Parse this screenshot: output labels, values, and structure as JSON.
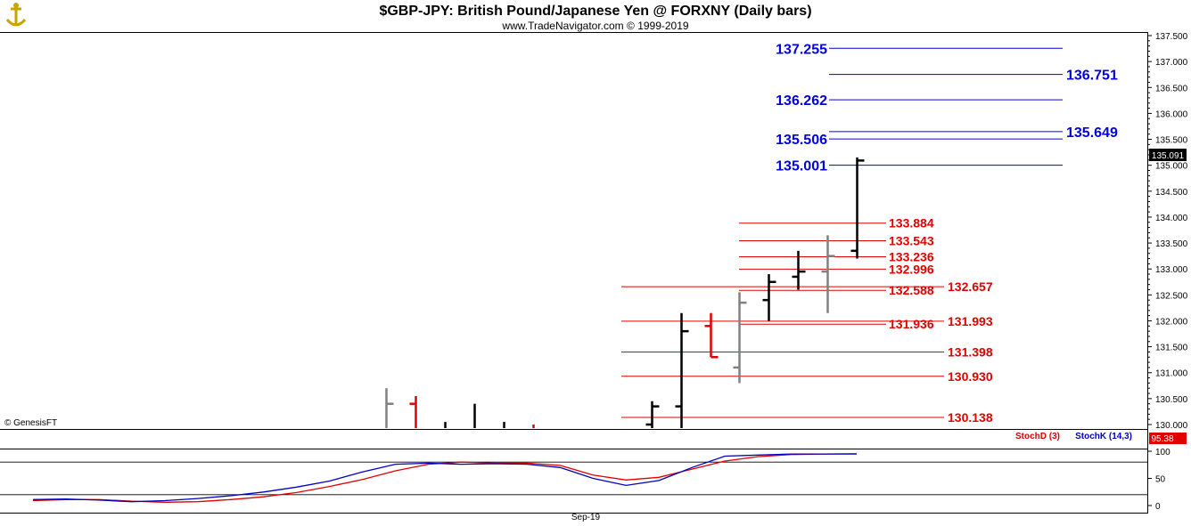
{
  "header": {
    "title": "$GBP-JPY:  British Pound/Japanese Yen @ FORXNY  (Daily bars)",
    "subtitle": "www.TradeNavigator.com © 1999-2019",
    "logo": "anchor-logo-icon"
  },
  "watermark": "© GenesisFT",
  "colors": {
    "bull": "#000000",
    "bear": "#e00000",
    "neutral": "#808080",
    "blue_levels": "#0000e0",
    "red_levels": "#e00000",
    "stochD": "#e00000",
    "stochK": "#0000c0",
    "last_price_bg": "#000000",
    "stoch_last_bg": "#e00000"
  },
  "chart_data": [
    {
      "type": "ohlc",
      "title": "$GBP-JPY:  British Pound/Japanese Yen @ FORXNY  (Daily bars)",
      "ylim": [
        129.9,
        137.6
      ],
      "y_ticks": [
        "137.500",
        "137.000",
        "136.500",
        "136.000",
        "135.500",
        "135.000",
        "134.500",
        "134.000",
        "133.500",
        "133.000",
        "132.500",
        "132.000",
        "131.500",
        "131.000",
        "130.500",
        "130.000"
      ],
      "last_price_label": "135.091",
      "last_price": 135.091,
      "x_label": "Sep-19",
      "bars": [
        {
          "open": 129.7,
          "high": 130.7,
          "low": 129.4,
          "close": 130.4,
          "color": "neutral"
        },
        {
          "open": 130.4,
          "high": 130.55,
          "low": 129.4,
          "close": 129.6,
          "color": "bear"
        },
        {
          "open": 129.6,
          "high": 130.05,
          "low": 129.4,
          "close": 129.7,
          "color": "bull"
        },
        {
          "open": 129.6,
          "high": 130.4,
          "low": 129.4,
          "close": 129.9,
          "color": "bull"
        },
        {
          "open": 129.8,
          "high": 130.05,
          "low": 129.4,
          "close": 129.9,
          "color": "bull"
        },
        {
          "open": 129.8,
          "high": 130.0,
          "low": 129.4,
          "close": 129.8,
          "color": "bear"
        },
        {
          "open": 130.0,
          "high": 130.45,
          "low": 129.4,
          "close": 130.35,
          "color": "bull"
        },
        {
          "open": 130.35,
          "high": 132.15,
          "low": 129.8,
          "close": 131.8,
          "color": "bull"
        },
        {
          "open": 131.9,
          "high": 132.15,
          "low": 131.3,
          "close": 131.3,
          "color": "bear"
        },
        {
          "open": 131.1,
          "high": 132.55,
          "low": 130.8,
          "close": 132.35,
          "color": "neutral"
        },
        {
          "open": 132.4,
          "high": 132.9,
          "low": 132.0,
          "close": 132.75,
          "color": "bull"
        },
        {
          "open": 132.85,
          "high": 133.35,
          "low": 132.6,
          "close": 132.95,
          "color": "bull"
        },
        {
          "open": 132.95,
          "high": 133.65,
          "low": 132.15,
          "close": 133.25,
          "color": "neutral"
        },
        {
          "open": 133.35,
          "high": 135.15,
          "low": 133.2,
          "close": 135.091,
          "color": "bull"
        }
      ],
      "blue_levels": [
        {
          "label": "137.255",
          "value": 137.255,
          "side": "left"
        },
        {
          "label": "136.751",
          "value": 136.751,
          "side": "right"
        },
        {
          "label": "136.262",
          "value": 136.262,
          "side": "left"
        },
        {
          "label": "135.649",
          "value": 135.649,
          "side": "right"
        },
        {
          "label": "135.506",
          "value": 135.506,
          "side": "left"
        },
        {
          "label": "135.001",
          "value": 135.001,
          "side": "left"
        }
      ],
      "red_levels": [
        {
          "label": "133.884",
          "value": 133.884,
          "group": "inner"
        },
        {
          "label": "133.543",
          "value": 133.543,
          "group": "inner"
        },
        {
          "label": "133.236",
          "value": 133.236,
          "group": "inner"
        },
        {
          "label": "132.996",
          "value": 132.996,
          "group": "inner"
        },
        {
          "label": "132.588",
          "value": 132.588,
          "group": "inner"
        },
        {
          "label": "131.936",
          "value": 131.936,
          "group": "inner"
        },
        {
          "label": "132.657",
          "value": 132.657,
          "group": "outer"
        },
        {
          "label": "131.993",
          "value": 131.993,
          "group": "outer"
        },
        {
          "label": "131.398",
          "value": 131.398,
          "group": "outer"
        },
        {
          "label": "130.930",
          "value": 130.93,
          "group": "outer"
        },
        {
          "label": "130.138",
          "value": 130.138,
          "group": "outer"
        }
      ]
    },
    {
      "type": "line",
      "ylim": [
        0,
        100
      ],
      "y_ticks": [
        "100",
        "50",
        "0"
      ],
      "hlines": [
        80,
        20
      ],
      "last_value_label": "95.38",
      "series": [
        {
          "name": "StochD (3)",
          "color": "stochD",
          "values": [
            9,
            11,
            11,
            8,
            6,
            7,
            11,
            16,
            24,
            35,
            48,
            64,
            76,
            80,
            78,
            78,
            74,
            56,
            47,
            52,
            67,
            82,
            90,
            94,
            95,
            95.38
          ]
        },
        {
          "name": "StochK (14,3)",
          "color": "stochK",
          "values": [
            11,
            12,
            10,
            7,
            9,
            13,
            18,
            25,
            34,
            45,
            62,
            76,
            78,
            76,
            77,
            76,
            70,
            50,
            37,
            46,
            70,
            91,
            93,
            95,
            95,
            95
          ]
        }
      ]
    }
  ]
}
